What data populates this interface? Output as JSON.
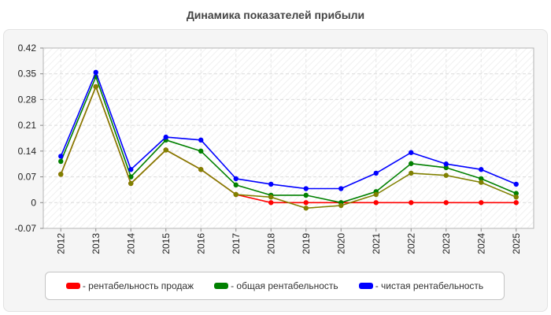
{
  "chart_data": {
    "type": "line",
    "title": "Динамика показателей прибыли",
    "xlabel": "",
    "ylabel": "",
    "x": [
      "2012",
      "2013",
      "2014",
      "2015",
      "2016",
      "2017",
      "2018",
      "2019",
      "2020",
      "2021",
      "2022",
      "2023",
      "2024",
      "2025"
    ],
    "ylim": [
      -0.07,
      0.42
    ],
    "yticks": [
      "-0.07",
      "0",
      "0.07",
      "0.14",
      "0.21",
      "0.28",
      "0.35",
      "0.42"
    ],
    "grid": true,
    "legend_position": "bottom",
    "series": [
      {
        "name": "рентабельность продаж",
        "color": "#ff0000",
        "values": [
          0.077,
          0.315,
          0.052,
          0.143,
          0.09,
          0.022,
          0.0,
          0.0,
          0.0,
          0.0,
          0.0,
          0.0,
          0.0,
          0.0
        ]
      },
      {
        "name": "общая рентабельность",
        "color": "#008000",
        "values": [
          0.112,
          0.342,
          0.07,
          0.17,
          0.14,
          0.048,
          0.02,
          0.02,
          0.0,
          0.03,
          0.106,
          0.095,
          0.065,
          0.025
        ]
      },
      {
        "name": "чистая рентабельность",
        "color": "#0000ff",
        "values": [
          0.126,
          0.354,
          0.09,
          0.178,
          0.17,
          0.065,
          0.05,
          0.038,
          0.038,
          0.08,
          0.136,
          0.105,
          0.09,
          0.05
        ]
      },
      {
        "name": "",
        "color": "#808000",
        "values": [
          0.077,
          0.315,
          0.052,
          0.143,
          0.09,
          0.022,
          0.015,
          -0.015,
          -0.008,
          0.022,
          0.08,
          0.074,
          0.055,
          0.015
        ]
      }
    ]
  }
}
